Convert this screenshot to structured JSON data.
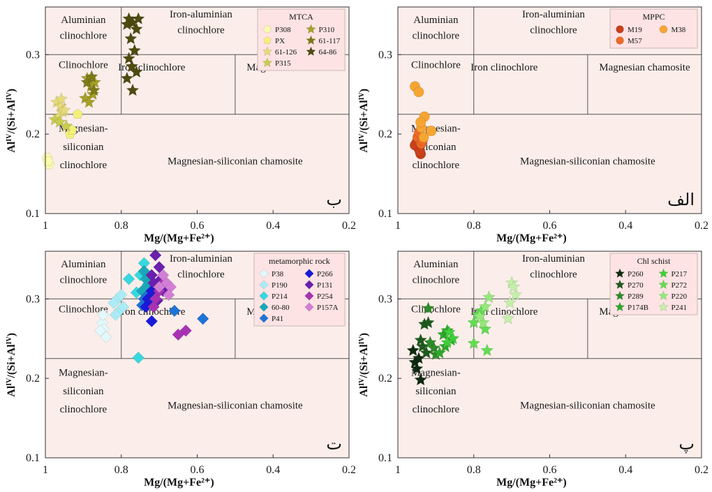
{
  "colors": {
    "plot_background": "#fbeeea",
    "legend_background": "#fde3e3",
    "grid_line": "#555555"
  },
  "fields": [
    {
      "name": "Aluminian clinochlore",
      "lines": [
        "Aluminian",
        "clinochlore"
      ]
    },
    {
      "name": "Iron-aluminian clinochlore",
      "lines": [
        "Iron-aluminian",
        "clinochlore"
      ]
    },
    {
      "name": "Clinochlore",
      "lines": [
        "Clinochlore"
      ]
    },
    {
      "name": "Iron clinochlore",
      "lines": [
        "Iron clinochlore"
      ]
    },
    {
      "name": "Magnesian chamosite",
      "lines": [
        "Magnesian chamosite"
      ]
    },
    {
      "name": "Magnesian-siliconian clinochlore",
      "lines": [
        "Magnesian-",
        "siliconian",
        "clinochlore"
      ]
    },
    {
      "name": "Magnesian-siliconian chamosite",
      "lines": [
        "Magnesian-siliconian chamosite"
      ]
    }
  ],
  "chart_data": [
    {
      "panel_letter": "ب",
      "type": "scatter",
      "xlabel": "Mg/(Mg+Fe²⁺)",
      "ylabel": "AlIV/(Si+AlIV)",
      "xlim": [
        1,
        0.2
      ],
      "ylim": [
        0.1,
        0.36
      ],
      "x_ticks": [
        "1",
        "0.8",
        "0.6",
        "0.4",
        "0.2"
      ],
      "y_ticks": [
        "0.1",
        "0.2",
        "0.3"
      ],
      "legend": {
        "title": "MTCA",
        "position": "top-right",
        "columns": 2
      },
      "series": [
        {
          "name": "P308",
          "marker": "hexagon",
          "color": "#fafab0",
          "points": [
            [
              0.995,
              0.17
            ],
            [
              0.99,
              0.162
            ],
            [
              0.993,
              0.166
            ]
          ]
        },
        {
          "name": "PX",
          "marker": "pentagon",
          "color": "#f3f07a",
          "points": [
            [
              0.935,
              0.2
            ],
            [
              0.915,
              0.225
            ],
            [
              0.93,
              0.205
            ]
          ]
        },
        {
          "name": "61-126",
          "marker": "star",
          "color": "#e6da7a",
          "points": [
            [
              0.97,
              0.24
            ],
            [
              0.96,
              0.235
            ],
            [
              0.955,
              0.228
            ],
            [
              0.965,
              0.222
            ],
            [
              0.95,
              0.23
            ],
            [
              0.958,
              0.244
            ]
          ]
        },
        {
          "name": "P315",
          "marker": "star",
          "color": "#c8cc50",
          "points": [
            [
              0.975,
              0.218
            ],
            [
              0.962,
              0.215
            ],
            [
              0.945,
              0.21
            ]
          ]
        },
        {
          "name": "P310",
          "marker": "star",
          "color": "#a6a02a",
          "points": [
            [
              0.89,
              0.27
            ],
            [
              0.88,
              0.26
            ],
            [
              0.875,
              0.25
            ],
            [
              0.895,
              0.245
            ],
            [
              0.87,
              0.265
            ],
            [
              0.885,
              0.24
            ]
          ]
        },
        {
          "name": "61-117",
          "marker": "star",
          "color": "#7d7a18",
          "points": [
            [
              0.89,
              0.265
            ],
            [
              0.878,
              0.272
            ],
            [
              0.872,
              0.255
            ]
          ]
        },
        {
          "name": "64-86",
          "marker": "star",
          "color": "#4e4a10",
          "points": [
            [
              0.78,
              0.345
            ],
            [
              0.77,
              0.34
            ],
            [
              0.76,
              0.332
            ],
            [
              0.775,
              0.32
            ],
            [
              0.765,
              0.305
            ],
            [
              0.78,
              0.295
            ],
            [
              0.772,
              0.285
            ],
            [
              0.76,
              0.278
            ],
            [
              0.785,
              0.27
            ],
            [
              0.77,
              0.255
            ],
            [
              0.755,
              0.345
            ],
            [
              0.785,
              0.338
            ]
          ]
        }
      ]
    },
    {
      "panel_letter": "الف",
      "type": "scatter",
      "xlabel": "Mg/(Mg+Fe²⁺)",
      "ylabel": "AlIV/(Si+AlIV)",
      "xlim": [
        1,
        0.2
      ],
      "ylim": [
        0.1,
        0.36
      ],
      "x_ticks": [
        "1",
        "0.8",
        "0.6",
        "0.4",
        "0.2"
      ],
      "y_ticks": [
        "0.1",
        "0.2",
        "0.3"
      ],
      "legend": {
        "title": "MPPC",
        "position": "top-right",
        "columns": 2
      },
      "series": [
        {
          "name": "M19",
          "marker": "circle",
          "color": "#c9401a",
          "points": [
            [
              0.95,
              0.19
            ],
            [
              0.945,
              0.182
            ],
            [
              0.94,
              0.175
            ],
            [
              0.955,
              0.186
            ],
            [
              0.942,
              0.178
            ]
          ]
        },
        {
          "name": "M57",
          "marker": "circle",
          "color": "#ee6a28",
          "points": [
            [
              0.948,
              0.196
            ],
            [
              0.938,
              0.188
            ],
            [
              0.944,
              0.202
            ],
            [
              0.935,
              0.192
            ]
          ]
        },
        {
          "name": "M38",
          "marker": "circle",
          "color": "#f7a531",
          "points": [
            [
              0.955,
              0.26
            ],
            [
              0.945,
              0.253
            ],
            [
              0.93,
              0.222
            ],
            [
              0.938,
              0.208
            ],
            [
              0.912,
              0.204
            ],
            [
              0.932,
              0.196
            ],
            [
              0.94,
              0.215
            ]
          ]
        }
      ]
    },
    {
      "panel_letter": "ت",
      "type": "scatter",
      "xlabel": "Mg/(Mg+Fe²⁺)",
      "ylabel": "AlIV/(Si+AlIV)",
      "xlim": [
        1,
        0.2
      ],
      "ylim": [
        0.1,
        0.36
      ],
      "x_ticks": [
        "1",
        "0.8",
        "0.6",
        "0.4",
        "0.2"
      ],
      "y_ticks": [
        "0.1",
        "0.2",
        "0.3"
      ],
      "legend": {
        "title": "metamorphic rock",
        "position": "top-right",
        "columns": 2
      },
      "series": [
        {
          "name": "P38",
          "marker": "diamond",
          "color": "#e2f8fb",
          "points": [
            [
              0.85,
              0.27
            ],
            [
              0.845,
              0.262
            ],
            [
              0.84,
              0.252
            ],
            [
              0.855,
              0.26
            ],
            [
              0.848,
              0.28
            ]
          ]
        },
        {
          "name": "P190",
          "marker": "diamond",
          "color": "#a9ecf5",
          "points": [
            [
              0.81,
              0.3
            ],
            [
              0.805,
              0.285
            ],
            [
              0.795,
              0.29
            ],
            [
              0.8,
              0.305
            ],
            [
              0.82,
              0.295
            ],
            [
              0.815,
              0.28
            ]
          ]
        },
        {
          "name": "P214",
          "marker": "diamond",
          "color": "#37d8e0",
          "points": [
            [
              0.78,
              0.325
            ],
            [
              0.76,
              0.308
            ],
            [
              0.755,
              0.226
            ],
            [
              0.75,
              0.33
            ],
            [
              0.74,
              0.345
            ]
          ]
        },
        {
          "name": "60-80",
          "marker": "diamond",
          "color": "#1aa8b8",
          "points": [
            [
              0.74,
              0.335
            ],
            [
              0.735,
              0.325
            ],
            [
              0.73,
              0.318
            ],
            [
              0.745,
              0.31
            ]
          ]
        },
        {
          "name": "P41",
          "marker": "diamond",
          "color": "#1e73d6",
          "points": [
            [
              0.74,
              0.3
            ],
            [
              0.735,
              0.295
            ],
            [
              0.73,
              0.305
            ],
            [
              0.66,
              0.285
            ],
            [
              0.585,
              0.275
            ],
            [
              0.745,
              0.292
            ]
          ]
        },
        {
          "name": "P266",
          "marker": "diamond",
          "color": "#1a1ad8",
          "points": [
            [
              0.73,
              0.3
            ],
            [
              0.725,
              0.295
            ],
            [
              0.72,
              0.31
            ],
            [
              0.735,
              0.29
            ],
            [
              0.72,
              0.272
            ]
          ]
        },
        {
          "name": "P131",
          "marker": "diamond",
          "color": "#6a1fb0",
          "points": [
            [
              0.71,
              0.355
            ],
            [
              0.7,
              0.34
            ],
            [
              0.695,
              0.325
            ],
            [
              0.72,
              0.33
            ],
            [
              0.69,
              0.31
            ],
            [
              0.705,
              0.298
            ],
            [
              0.715,
              0.32
            ]
          ]
        },
        {
          "name": "P254",
          "marker": "diamond",
          "color": "#a832b4",
          "points": [
            [
              0.7,
              0.31
            ],
            [
              0.71,
              0.3
            ],
            [
              0.69,
              0.32
            ],
            [
              0.65,
              0.255
            ],
            [
              0.63,
              0.26
            ],
            [
              0.715,
              0.29
            ]
          ]
        },
        {
          "name": "P157A",
          "marker": "diamond",
          "color": "#d37ed6",
          "points": [
            [
              0.68,
              0.32
            ],
            [
              0.67,
              0.315
            ],
            [
              0.69,
              0.33
            ],
            [
              0.675,
              0.305
            ],
            [
              0.7,
              0.315
            ]
          ]
        }
      ]
    },
    {
      "panel_letter": "پ",
      "type": "scatter",
      "xlabel": "Mg/(Mg+Fe²⁺)",
      "ylabel": "AlIV/(Si+AlIV)",
      "xlim": [
        1,
        0.2
      ],
      "ylim": [
        0.1,
        0.36
      ],
      "x_ticks": [
        "1",
        "0.8",
        "0.6",
        "0.4",
        "0.2"
      ],
      "y_ticks": [
        "0.1",
        "0.2",
        "0.3"
      ],
      "legend": {
        "title": "Chl schist",
        "position": "top-right",
        "columns": 2
      },
      "series": [
        {
          "name": "P260",
          "marker": "star",
          "color": "#0e2a10",
          "points": [
            [
              0.955,
              0.22
            ],
            [
              0.95,
              0.212
            ],
            [
              0.945,
              0.225
            ],
            [
              0.94,
              0.198
            ],
            [
              0.96,
              0.235
            ]
          ]
        },
        {
          "name": "P270",
          "marker": "star",
          "color": "#1e5a1e",
          "points": [
            [
              0.935,
              0.24
            ],
            [
              0.925,
              0.232
            ],
            [
              0.94,
              0.248
            ],
            [
              0.93,
              0.268
            ],
            [
              0.92,
              0.27
            ]
          ]
        },
        {
          "name": "P289",
          "marker": "star",
          "color": "#2f8a2a",
          "points": [
            [
              0.915,
              0.245
            ],
            [
              0.905,
              0.238
            ],
            [
              0.92,
              0.288
            ],
            [
              0.9,
              0.23
            ]
          ]
        },
        {
          "name": "P174B",
          "marker": "star",
          "color": "#2ea82a",
          "points": [
            [
              0.88,
              0.255
            ],
            [
              0.87,
              0.26
            ],
            [
              0.86,
              0.248
            ],
            [
              0.875,
              0.24
            ],
            [
              0.89,
              0.232
            ]
          ]
        },
        {
          "name": "P217",
          "marker": "star",
          "color": "#3fcf3a",
          "points": [
            [
              0.865,
              0.258
            ],
            [
              0.855,
              0.25
            ],
            [
              0.87,
              0.245
            ]
          ]
        },
        {
          "name": "P272",
          "marker": "star",
          "color": "#62dd52",
          "points": [
            [
              0.8,
              0.27
            ],
            [
              0.79,
              0.28
            ],
            [
              0.77,
              0.262
            ],
            [
              0.8,
              0.244
            ],
            [
              0.765,
              0.235
            ],
            [
              0.78,
              0.285
            ]
          ]
        },
        {
          "name": "P220",
          "marker": "star",
          "color": "#93e97a",
          "points": [
            [
              0.76,
              0.302
            ],
            [
              0.77,
              0.29
            ],
            [
              0.775,
              0.27
            ],
            [
              0.785,
              0.278
            ]
          ]
        },
        {
          "name": "P241",
          "marker": "star",
          "color": "#c3f0a8",
          "points": [
            [
              0.7,
              0.32
            ],
            [
              0.69,
              0.305
            ],
            [
              0.705,
              0.295
            ],
            [
              0.71,
              0.275
            ],
            [
              0.695,
              0.315
            ]
          ]
        }
      ]
    }
  ]
}
